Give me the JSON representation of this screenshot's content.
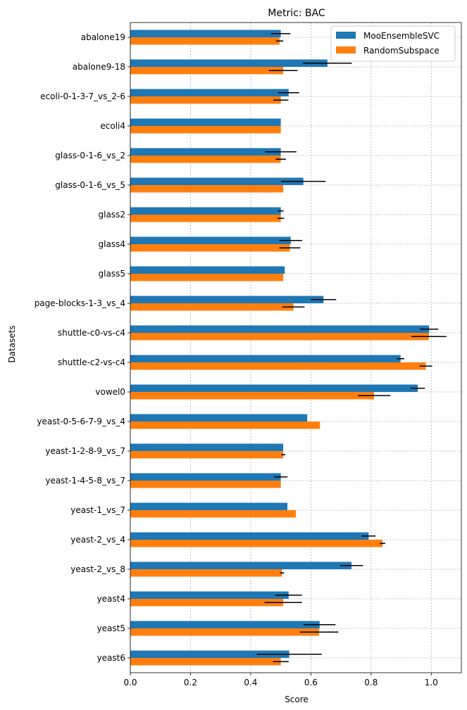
{
  "chart_data": {
    "type": "bar",
    "orientation": "horizontal",
    "title": "Metric: BAC",
    "xlabel": "Score",
    "ylabel": "Datasets",
    "xlim": [
      0.0,
      1.1
    ],
    "xticks": [
      "0.0",
      "0.2",
      "0.4",
      "0.6",
      "0.8",
      "1.0"
    ],
    "grid": true,
    "legend_position": "top-right",
    "categories": [
      "abalone19",
      "abalone9-18",
      "ecoli-0-1-3-7_vs_2-6",
      "ecoli4",
      "glass-0-1-6_vs_2",
      "glass-0-1-6_vs_5",
      "glass2",
      "glass4",
      "glass5",
      "page-blocks-1-3_vs_4",
      "shuttle-c0-vs-c4",
      "shuttle-c2-vs-c4",
      "vowel0",
      "yeast-0-5-6-7-9_vs_4",
      "yeast-1-2-8-9_vs_7",
      "yeast-1-4-5-8_vs_7",
      "yeast-1_vs_7",
      "yeast-2_vs_4",
      "yeast-2_vs_8",
      "yeast4",
      "yeast5",
      "yeast6"
    ],
    "series": [
      {
        "name": "MooEnsembleSVC",
        "color": "#1f77b4",
        "values": [
          0.5,
          0.655,
          0.526,
          0.5,
          0.5,
          0.575,
          0.5,
          0.533,
          0.513,
          0.642,
          0.993,
          0.898,
          0.955,
          0.588,
          0.508,
          0.5,
          0.522,
          0.792,
          0.735,
          0.526,
          0.629,
          0.528
        ],
        "errors": [
          0.032,
          0.081,
          0.035,
          0.0,
          0.052,
          0.074,
          0.009,
          0.038,
          0.0,
          0.042,
          0.03,
          0.012,
          0.024,
          0.0,
          0.0,
          0.022,
          0.0,
          0.023,
          0.038,
          0.044,
          0.053,
          0.108
        ]
      },
      {
        "name": "RandomSubspace",
        "color": "#ff7f0e",
        "values": [
          0.496,
          0.508,
          0.5,
          0.5,
          0.5,
          0.508,
          0.5,
          0.53,
          0.508,
          0.542,
          0.992,
          0.982,
          0.81,
          0.63,
          0.508,
          0.5,
          0.55,
          0.838,
          0.504,
          0.508,
          0.627,
          0.5
        ],
        "errors": [
          0.012,
          0.048,
          0.025,
          0.0,
          0.017,
          0.0,
          0.011,
          0.035,
          0.0,
          0.037,
          0.058,
          0.021,
          0.054,
          0.0,
          0.007,
          0.0,
          0.0,
          0.009,
          0.007,
          0.062,
          0.064,
          0.026
        ]
      }
    ]
  }
}
